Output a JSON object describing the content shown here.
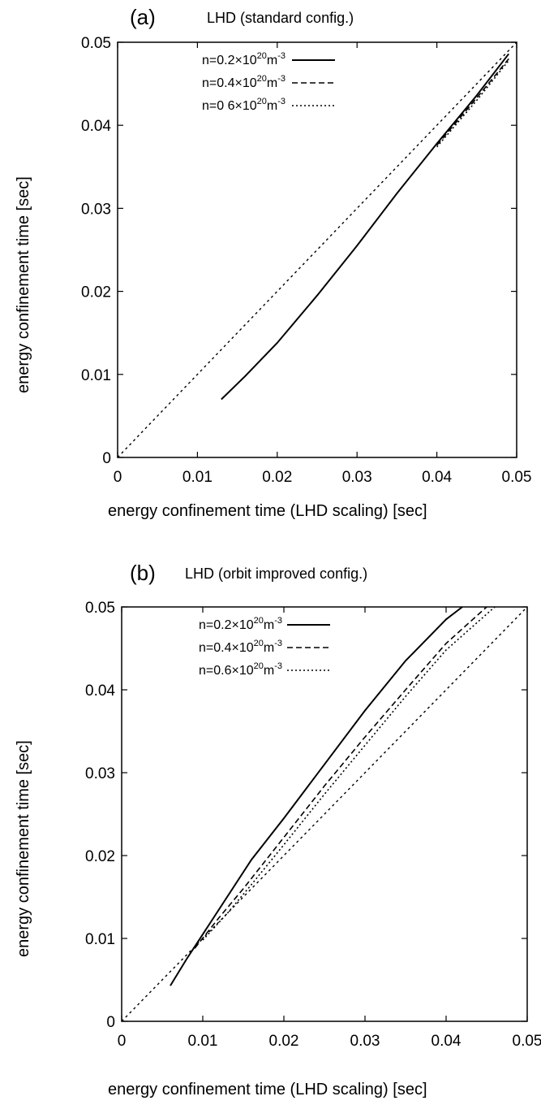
{
  "chart_data": [
    {
      "type": "line",
      "panel_letter": "(a)",
      "title": "LHD (standard config.)",
      "xlabel": "energy confinement time (LHD scaling) [sec]",
      "ylabel": "energy confinement time  [sec]",
      "xlim": [
        0,
        0.05
      ],
      "ylim": [
        0,
        0.05
      ],
      "x_ticks": [
        "0",
        "0.01",
        "0.02",
        "0.03",
        "0.04",
        "0.05"
      ],
      "y_ticks": [
        "0",
        "0.01",
        "0.02",
        "0.03",
        "0.04",
        "0.05"
      ],
      "grid": false,
      "legend_position": "top-left",
      "reference_line": {
        "style": "dotted",
        "x": [
          0,
          0.05
        ],
        "y": [
          0,
          0.05
        ]
      },
      "series": [
        {
          "name": "n=0.2×10²⁰m⁻³",
          "label_base": "n=0.2×10",
          "label_exp": "20",
          "label_unit": "m",
          "label_unit_exp": "-3",
          "style": "solid",
          "x": [
            0.013,
            0.016,
            0.02,
            0.025,
            0.03,
            0.035,
            0.04,
            0.045,
            0.049
          ],
          "y": [
            0.007,
            0.0098,
            0.0138,
            0.0195,
            0.0255,
            0.0318,
            0.0378,
            0.0436,
            0.0486
          ]
        },
        {
          "name": "n=0.4×10²⁰m⁻³",
          "label_base": "n=0.4×10",
          "label_exp": "20",
          "label_unit": "m",
          "label_unit_exp": "-3",
          "style": "dashed",
          "x": [
            0.04,
            0.045,
            0.049
          ],
          "y": [
            0.0376,
            0.0433,
            0.048
          ]
        },
        {
          "name": "n=0 6×10²⁰m⁻³",
          "label_base": "n=0 6×10",
          "label_exp": "20",
          "label_unit": "m",
          "label_unit_exp": "-3",
          "style": "dotted",
          "x": [
            0.04,
            0.045,
            0.049
          ],
          "y": [
            0.0374,
            0.043,
            0.0478
          ]
        }
      ]
    },
    {
      "type": "line",
      "panel_letter": "(b)",
      "title": "LHD (orbit improved config.)",
      "xlabel": "energy confinement time (LHD scaling) [sec]",
      "ylabel": "energy confinement time  [sec]",
      "xlim": [
        0,
        0.05
      ],
      "ylim": [
        0,
        0.05
      ],
      "x_ticks": [
        "0",
        "0.01",
        "0.02",
        "0.03",
        "0.04",
        "0.05"
      ],
      "y_ticks": [
        "0",
        "0.01",
        "0.02",
        "0.03",
        "0.04",
        "0.05"
      ],
      "grid": false,
      "legend_position": "top-left",
      "reference_line": {
        "style": "dotted",
        "x": [
          0,
          0.05
        ],
        "y": [
          0,
          0.05
        ]
      },
      "series": [
        {
          "name": "n=0.2×10²⁰m⁻³",
          "label_base": "n=0.2×10",
          "label_exp": "20",
          "label_unit": "m",
          "label_unit_exp": "-3",
          "style": "solid",
          "x": [
            0.006,
            0.008,
            0.01,
            0.013,
            0.016,
            0.02,
            0.025,
            0.03,
            0.035,
            0.04,
            0.042
          ],
          "y": [
            0.0043,
            0.0075,
            0.0105,
            0.015,
            0.0195,
            0.0245,
            0.031,
            0.0375,
            0.0435,
            0.0485,
            0.05
          ]
        },
        {
          "name": "n=0.4×10²⁰m⁻³",
          "label_base": "n=0.4×10",
          "label_exp": "20",
          "label_unit": "m",
          "label_unit_exp": "-3",
          "style": "dashed",
          "x": [
            0.009,
            0.012,
            0.015,
            0.02,
            0.025,
            0.03,
            0.035,
            0.04,
            0.045
          ],
          "y": [
            0.0088,
            0.0125,
            0.016,
            0.0222,
            0.0284,
            0.0343,
            0.04,
            0.0456,
            0.05
          ]
        },
        {
          "name": "n=0.6×10²⁰m⁻³",
          "label_base": "n=0.6×10",
          "label_exp": "20",
          "label_unit": "m",
          "label_unit_exp": "-3",
          "style": "dotted",
          "x": [
            0.01,
            0.013,
            0.016,
            0.02,
            0.025,
            0.03,
            0.035,
            0.04,
            0.046
          ],
          "y": [
            0.0098,
            0.013,
            0.0165,
            0.0213,
            0.0274,
            0.0333,
            0.0392,
            0.0448,
            0.05
          ]
        }
      ]
    }
  ]
}
